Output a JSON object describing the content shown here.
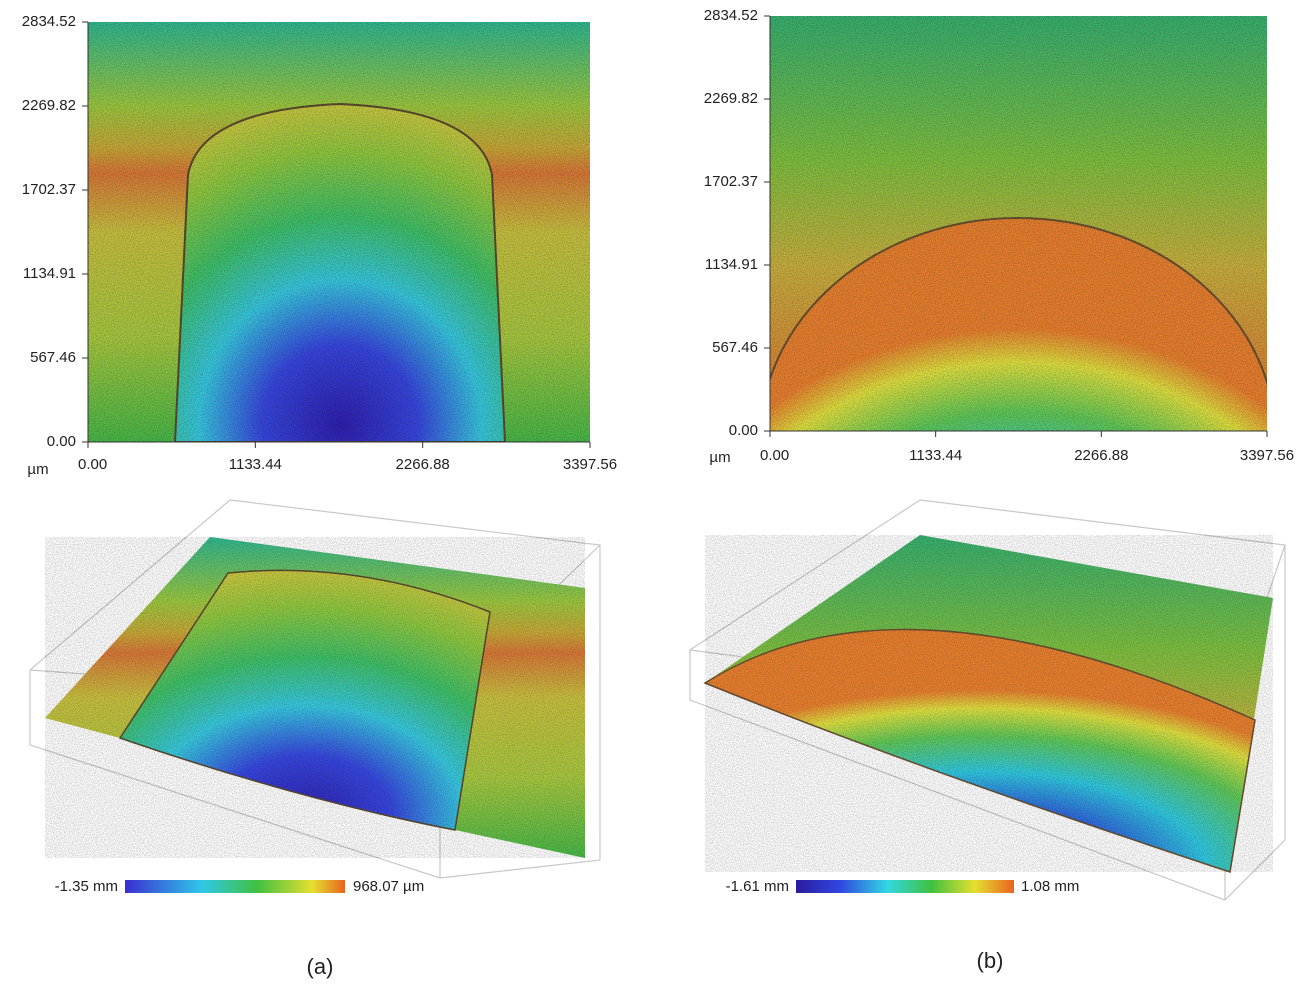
{
  "panels": [
    {
      "yticks": [
        "0.00",
        "567.46",
        "1134.91",
        "1702.37",
        "2269.82",
        "2834.52"
      ],
      "xticks": [
        "0.00",
        "1133.44",
        "2266.88",
        "3397.56"
      ],
      "unit": "µm",
      "colorbar": {
        "min": "-1.35 mm",
        "max": "968.07 µm"
      },
      "caption": "(a)"
    },
    {
      "yticks": [
        "0.00",
        "567.46",
        "1134.91",
        "1702.37",
        "2269.82",
        "2834.52"
      ],
      "xticks": [
        "0.00",
        "1133.44",
        "2266.88",
        "3397.56"
      ],
      "unit": "µm",
      "colorbar": {
        "min": "-1.61 mm",
        "max": "1.08 mm"
      },
      "caption": "(b)"
    }
  ]
}
